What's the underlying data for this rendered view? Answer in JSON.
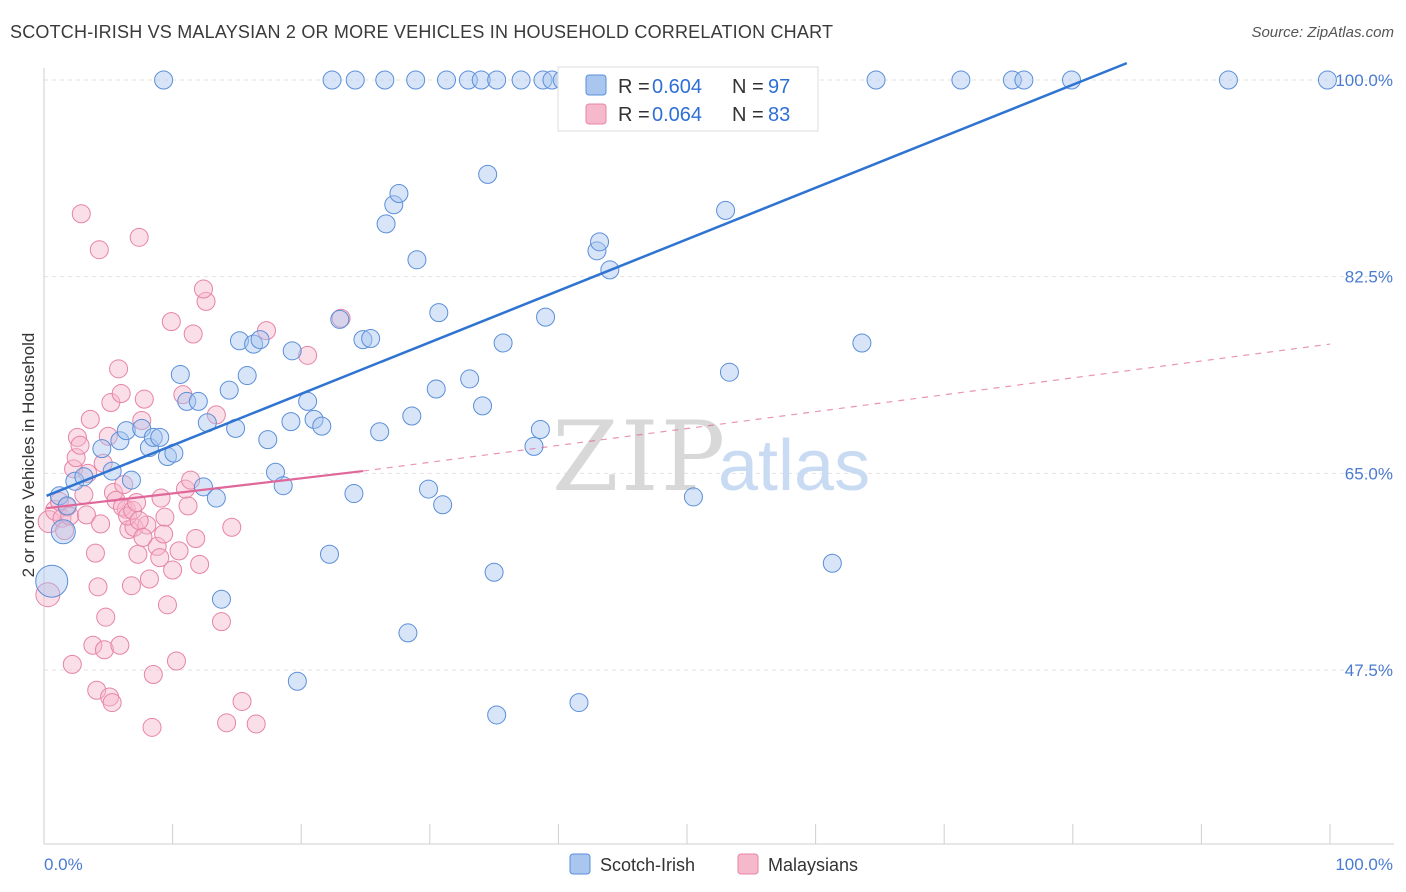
{
  "header": {
    "title": "SCOTCH-IRISH VS MALAYSIAN 2 OR MORE VEHICLES IN HOUSEHOLD CORRELATION CHART",
    "source": "Source: ZipAtlas.com"
  },
  "watermark": {
    "zip": "ZIP",
    "atlas": "atlas"
  },
  "colors": {
    "blue_fill": "#a9c6ef",
    "blue_stroke": "#5b8fd9",
    "blue_line": "#2f74d0",
    "pink_fill": "#f6b9cc",
    "pink_stroke": "#e684a5",
    "pink_line": "#e0679a",
    "grid": "#e3e3e3",
    "tick_label": "#4a7bd0"
  },
  "legend": {
    "rows": [
      {
        "r_label": "R = ",
        "r_value": "0.604",
        "n_label": "N = ",
        "n_value": "97"
      },
      {
        "r_label": "R = ",
        "r_value": "0.064",
        "n_label": "N = ",
        "n_value": "83"
      }
    ]
  },
  "bottom_legend": {
    "series1": "Scotch-Irish",
    "series2": "Malaysians"
  },
  "chart_data": {
    "type": "scatter",
    "title": "SCOTCH-IRISH VS MALAYSIAN 2 OR MORE VEHICLES IN HOUSEHOLD CORRELATION CHART",
    "xlabel": "",
    "ylabel": "2 or more Vehicles in Household",
    "xlim": [
      0,
      100
    ],
    "ylim": [
      30,
      101
    ],
    "x_tick_labels": [
      "0.0%",
      "100.0%"
    ],
    "y_ticks": [
      47.5,
      65.0,
      82.5,
      100.0
    ],
    "y_tick_labels": [
      "47.5%",
      "65.0%",
      "82.5%",
      "100.0%"
    ],
    "grid": true,
    "series": [
      {
        "name": "Scotch-Irish",
        "R": 0.604,
        "N": 97,
        "trend": {
          "x1": 0.2,
          "y1": 63.0,
          "x2": 84.2,
          "y2": 101.5,
          "style": "solid"
        },
        "points": [
          [
            0.6,
            55.4,
            28
          ],
          [
            1.5,
            59.8,
            20
          ],
          [
            1.2,
            63.0,
            14
          ],
          [
            1.8,
            62.1,
            14
          ],
          [
            2.4,
            64.3,
            14
          ],
          [
            3.1,
            64.7,
            14
          ],
          [
            4.5,
            67.2,
            14
          ],
          [
            5.3,
            65.2,
            14
          ],
          [
            5.9,
            67.9,
            14
          ],
          [
            6.8,
            64.4,
            14
          ],
          [
            6.4,
            68.8,
            14
          ],
          [
            7.6,
            69.0,
            14
          ],
          [
            8.2,
            67.3,
            14
          ],
          [
            8.5,
            68.2,
            14
          ],
          [
            9.0,
            68.2,
            14
          ],
          [
            9.6,
            66.5,
            14
          ],
          [
            10.1,
            66.8,
            14
          ],
          [
            10.6,
            73.8,
            14
          ],
          [
            11.1,
            71.4,
            14
          ],
          [
            12.0,
            71.4,
            14
          ],
          [
            12.7,
            69.5,
            14
          ],
          [
            12.4,
            63.8,
            14
          ],
          [
            13.4,
            62.8,
            14
          ],
          [
            14.4,
            72.4,
            14
          ],
          [
            14.9,
            69.0,
            14
          ],
          [
            15.2,
            76.8,
            14
          ],
          [
            15.8,
            73.7,
            14
          ],
          [
            16.3,
            76.5,
            14
          ],
          [
            16.8,
            76.9,
            14
          ],
          [
            17.4,
            68.0,
            14
          ],
          [
            18.0,
            65.1,
            14
          ],
          [
            18.6,
            63.9,
            14
          ],
          [
            19.2,
            69.6,
            14
          ],
          [
            19.3,
            75.9,
            14
          ],
          [
            20.5,
            71.4,
            14
          ],
          [
            21.0,
            69.8,
            14
          ],
          [
            21.6,
            69.2,
            14
          ],
          [
            22.2,
            57.8,
            14
          ],
          [
            23.0,
            78.7,
            14
          ],
          [
            24.1,
            63.2,
            14
          ],
          [
            24.8,
            76.9,
            14
          ],
          [
            25.4,
            77.0,
            14
          ],
          [
            26.1,
            68.7,
            14
          ],
          [
            26.6,
            87.2,
            14
          ],
          [
            27.2,
            88.9,
            14
          ],
          [
            27.6,
            89.9,
            14
          ],
          [
            28.3,
            50.8,
            14
          ],
          [
            28.6,
            70.1,
            14
          ],
          [
            29.0,
            84.0,
            14
          ],
          [
            29.9,
            63.6,
            14
          ],
          [
            30.5,
            72.5,
            14
          ],
          [
            30.7,
            79.3,
            14
          ],
          [
            31.0,
            62.2,
            14
          ],
          [
            33.1,
            73.4,
            14
          ],
          [
            34.1,
            71.0,
            14
          ],
          [
            34.5,
            91.6,
            14
          ],
          [
            35.0,
            56.2,
            14
          ],
          [
            35.2,
            43.5,
            14
          ],
          [
            35.7,
            76.6,
            14
          ],
          [
            38.1,
            67.4,
            14
          ],
          [
            38.6,
            68.9,
            14
          ],
          [
            39.0,
            78.9,
            14
          ],
          [
            41.6,
            44.6,
            14
          ],
          [
            43.0,
            84.8,
            14
          ],
          [
            43.2,
            85.6,
            14
          ],
          [
            44.0,
            83.1,
            14
          ],
          [
            50.5,
            62.9,
            14
          ],
          [
            53.0,
            88.4,
            14
          ],
          [
            53.3,
            74.0,
            14
          ],
          [
            61.3,
            57.0,
            14
          ],
          [
            63.6,
            76.6,
            14
          ],
          [
            9.3,
            100.0,
            14
          ],
          [
            22.4,
            100.0,
            14
          ],
          [
            24.2,
            100.0,
            14
          ],
          [
            26.5,
            100.0,
            14
          ],
          [
            28.9,
            100.0,
            14
          ],
          [
            31.3,
            100.0,
            14
          ],
          [
            33.0,
            100.0,
            14
          ],
          [
            34.0,
            100.0,
            14
          ],
          [
            35.2,
            100.0,
            14
          ],
          [
            37.1,
            100.0,
            14
          ],
          [
            38.8,
            100.0,
            14
          ],
          [
            39.5,
            100.0,
            14
          ],
          [
            40.3,
            100.0,
            14
          ],
          [
            42.0,
            100.0,
            14
          ],
          [
            46.6,
            100.0,
            14
          ],
          [
            50.0,
            100.0,
            14
          ],
          [
            55.5,
            100.0,
            14
          ],
          [
            64.7,
            100.0,
            14
          ],
          [
            71.3,
            100.0,
            14
          ],
          [
            75.3,
            100.0,
            14
          ],
          [
            76.2,
            100.0,
            14
          ],
          [
            79.9,
            100.0,
            14
          ],
          [
            92.1,
            100.0,
            14
          ],
          [
            99.8,
            100.0,
            14
          ],
          [
            13.8,
            53.8,
            14
          ],
          [
            19.7,
            46.5,
            14
          ]
        ]
      },
      {
        "name": "Malaysians",
        "R": 0.064,
        "N": 83,
        "trend": {
          "x1": 0.2,
          "y1": 61.9,
          "x2": 24.8,
          "y2": 65.2,
          "style": "solid",
          "dashed_to": {
            "x": 100.0,
            "y": 76.5
          }
        },
        "points": [
          [
            0.3,
            54.2,
            20
          ],
          [
            0.4,
            60.7,
            18
          ],
          [
            0.9,
            61.7,
            16
          ],
          [
            1.2,
            62.5,
            14
          ],
          [
            1.4,
            61.0,
            14
          ],
          [
            1.6,
            59.9,
            14
          ],
          [
            1.8,
            62.0,
            14
          ],
          [
            2.0,
            61.2,
            14
          ],
          [
            2.3,
            65.4,
            14
          ],
          [
            2.5,
            66.4,
            14
          ],
          [
            2.6,
            68.2,
            14
          ],
          [
            2.8,
            67.5,
            14
          ],
          [
            3.1,
            63.1,
            14
          ],
          [
            3.3,
            61.3,
            14
          ],
          [
            3.4,
            65.0,
            14
          ],
          [
            3.6,
            69.8,
            14
          ],
          [
            4.0,
            57.9,
            14
          ],
          [
            4.2,
            54.9,
            14
          ],
          [
            4.4,
            60.5,
            14
          ],
          [
            4.6,
            65.9,
            14
          ],
          [
            4.8,
            52.2,
            14
          ],
          [
            5.0,
            68.3,
            14
          ],
          [
            5.2,
            71.3,
            14
          ],
          [
            5.4,
            63.3,
            14
          ],
          [
            5.6,
            62.6,
            14
          ],
          [
            5.8,
            74.3,
            14
          ],
          [
            6.0,
            72.1,
            14
          ],
          [
            6.2,
            64.0,
            14
          ],
          [
            6.4,
            61.8,
            14
          ],
          [
            6.6,
            60.0,
            14
          ],
          [
            6.8,
            55.0,
            14
          ],
          [
            7.0,
            60.2,
            14
          ],
          [
            7.3,
            57.8,
            14
          ],
          [
            7.6,
            69.7,
            14
          ],
          [
            7.8,
            71.6,
            14
          ],
          [
            8.0,
            60.4,
            14
          ],
          [
            8.2,
            55.6,
            14
          ],
          [
            8.5,
            47.1,
            14
          ],
          [
            8.8,
            58.5,
            14
          ],
          [
            9.1,
            62.8,
            14
          ],
          [
            9.3,
            59.6,
            14
          ],
          [
            9.6,
            53.3,
            14
          ],
          [
            9.9,
            78.5,
            14
          ],
          [
            10.3,
            48.3,
            14
          ],
          [
            10.8,
            72.0,
            14
          ],
          [
            11.2,
            62.1,
            14
          ],
          [
            11.6,
            77.4,
            14
          ],
          [
            12.1,
            56.9,
            14
          ],
          [
            12.6,
            80.3,
            14
          ],
          [
            13.4,
            70.2,
            14
          ],
          [
            13.8,
            51.8,
            14
          ],
          [
            14.2,
            42.8,
            14
          ],
          [
            14.6,
            60.2,
            14
          ],
          [
            15.4,
            44.7,
            14
          ],
          [
            16.5,
            42.7,
            14
          ],
          [
            17.3,
            77.7,
            14
          ],
          [
            20.5,
            75.5,
            14
          ],
          [
            23.1,
            78.8,
            14
          ],
          [
            2.2,
            48.0,
            14
          ],
          [
            3.8,
            49.7,
            14
          ],
          [
            4.1,
            45.7,
            14
          ],
          [
            4.7,
            49.3,
            14
          ],
          [
            5.1,
            45.1,
            14
          ],
          [
            5.3,
            44.6,
            14
          ],
          [
            5.9,
            49.7,
            14
          ],
          [
            6.1,
            62.0,
            14
          ],
          [
            6.5,
            61.2,
            14
          ],
          [
            6.9,
            61.7,
            14
          ],
          [
            7.2,
            62.4,
            14
          ],
          [
            7.4,
            60.8,
            14
          ],
          [
            7.7,
            59.3,
            14
          ],
          [
            8.4,
            42.4,
            14
          ],
          [
            9.0,
            57.5,
            14
          ],
          [
            9.4,
            61.1,
            14
          ],
          [
            10.0,
            56.4,
            14
          ],
          [
            10.5,
            58.1,
            14
          ],
          [
            11.0,
            63.6,
            14
          ],
          [
            11.4,
            64.4,
            14
          ],
          [
            11.8,
            59.2,
            14
          ],
          [
            2.9,
            88.1,
            14
          ],
          [
            4.3,
            84.9,
            14
          ],
          [
            7.4,
            86.0,
            14
          ],
          [
            12.4,
            81.4,
            14
          ]
        ]
      }
    ]
  }
}
